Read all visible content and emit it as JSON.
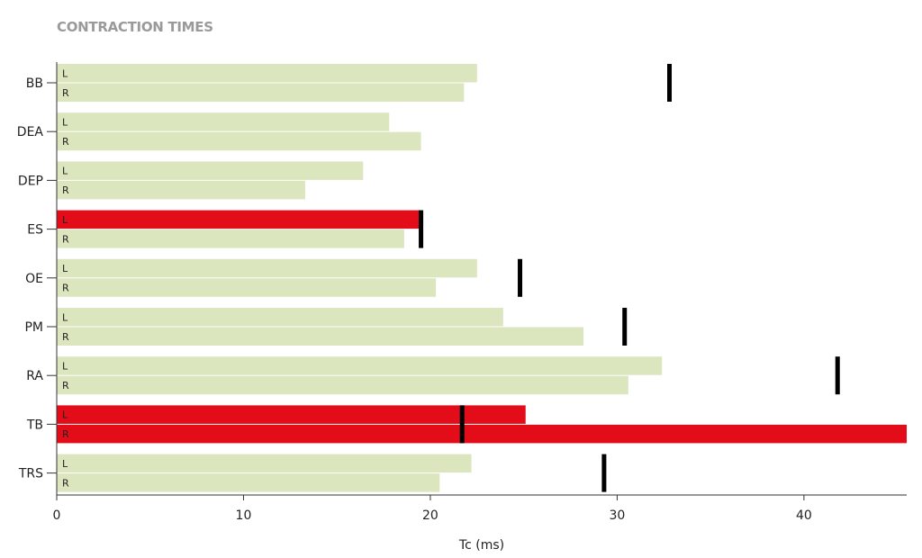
{
  "chart_data": {
    "type": "bar",
    "orientation": "horizontal",
    "title": "CONTRACTION TIMES",
    "xlabel": "Tc (ms)",
    "ylabel": "",
    "xlim": [
      0,
      45.5
    ],
    "xticks": [
      0,
      10,
      20,
      30,
      40
    ],
    "categories": [
      "BB",
      "DEA",
      "DEP",
      "ES",
      "OE",
      "PM",
      "RA",
      "TB",
      "TRS"
    ],
    "sides": [
      "L",
      "R"
    ],
    "series": [
      {
        "name": "L",
        "values": [
          22.5,
          17.8,
          16.4,
          19.5,
          22.5,
          23.9,
          32.4,
          25.1,
          22.2
        ]
      },
      {
        "name": "R",
        "values": [
          21.8,
          19.5,
          13.3,
          18.6,
          20.3,
          28.2,
          30.6,
          45.5,
          20.5
        ]
      }
    ],
    "reference": [
      32.8,
      null,
      null,
      19.5,
      24.8,
      30.4,
      41.8,
      21.7,
      29.3
    ],
    "flags": {
      "L": [
        false,
        false,
        false,
        true,
        false,
        false,
        false,
        true,
        false
      ],
      "R": [
        false,
        false,
        false,
        false,
        false,
        false,
        false,
        true,
        false
      ]
    },
    "colors": {
      "normal": "#dbe6bf",
      "flagged": "#e20d18",
      "reference": "#000000",
      "axis": "#333333",
      "separator": "#ffffff"
    },
    "grid": false
  }
}
